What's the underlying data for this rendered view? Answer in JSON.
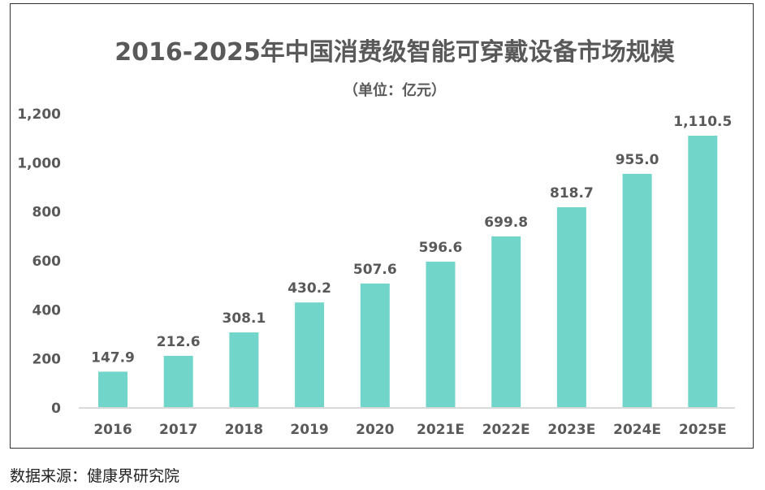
{
  "chart_data": {
    "type": "bar",
    "title": "2016-2025年中国消费级智能可穿戴设备市场规模",
    "subtitle": "（单位：亿元）",
    "categories": [
      "2016",
      "2017",
      "2018",
      "2019",
      "2020",
      "2021E",
      "2022E",
      "2023E",
      "2024E",
      "2025E"
    ],
    "values": [
      147.9,
      212.6,
      308.1,
      430.2,
      507.6,
      596.6,
      699.8,
      818.7,
      955.0,
      1110.5
    ],
    "value_labels": [
      "147.9",
      "212.6",
      "308.1",
      "430.2",
      "507.6",
      "596.6",
      "699.8",
      "818.7",
      "955.0",
      "1,110.5"
    ],
    "yticks": [
      "0",
      "200",
      "400",
      "600",
      "800",
      "1,000",
      "1,200"
    ],
    "ylim": [
      0,
      1200
    ],
    "xlabel": "",
    "ylabel": "",
    "grid": false,
    "bar_color": "#72D5C9",
    "text_color": "#595959"
  },
  "source": "数据来源：健康界研究院"
}
